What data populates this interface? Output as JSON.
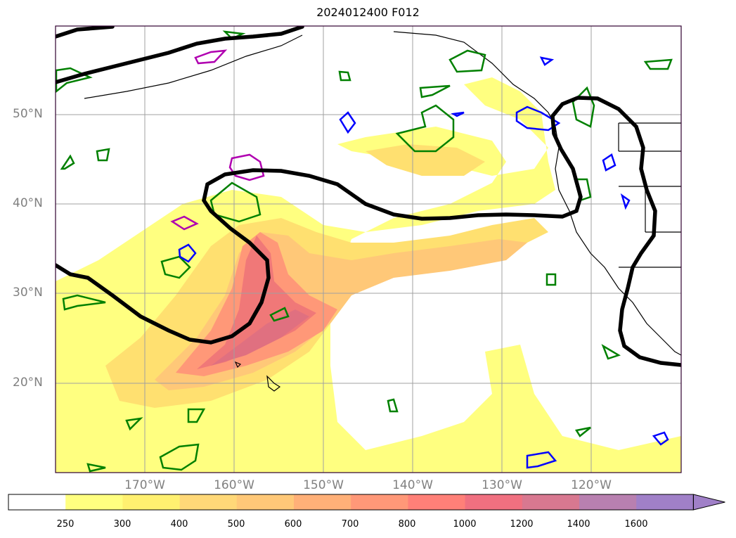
{
  "title": "2024012400 F012",
  "lat_labels": [
    "50°N",
    "40°N",
    "30°N",
    "20°N"
  ],
  "lon_labels": [
    "170°W",
    "160°W",
    "150°W",
    "140°W",
    "130°W",
    "120°W"
  ],
  "colorbar": {
    "ticks": [
      "250",
      "300",
      "400",
      "500",
      "600",
      "700",
      "800",
      "1000",
      "1200",
      "1400",
      "1600"
    ],
    "colors": [
      "#ffffff",
      "#ffff80",
      "#fff070",
      "#ffd878",
      "#ffc878",
      "#ffb078",
      "#ff9878",
      "#ff8078",
      "#f07080",
      "#d87890",
      "#b880b0",
      "#a080c8"
    ]
  },
  "map_layers": {
    "filled_field": "ivt-shading",
    "thick_contour_color": "#000000",
    "green_contour_color": "#008000",
    "blue_contour_color": "#0000ff",
    "magenta_contour_color": "#b000b0"
  }
}
